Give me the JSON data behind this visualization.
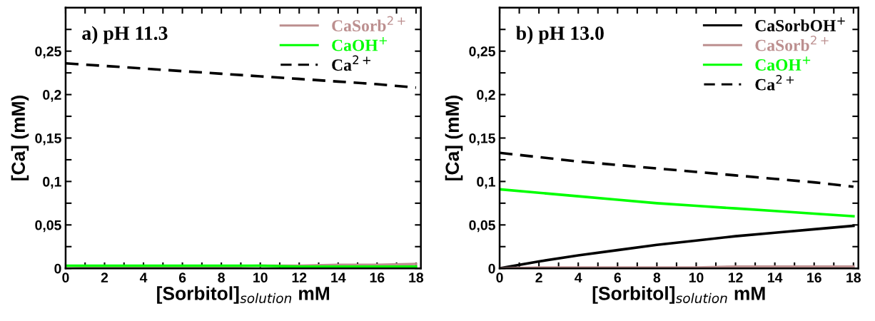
{
  "chart_data": [
    {
      "type": "line",
      "title": "a) pH 11.3",
      "xlabel": "[Sorbitol]$_{solution}$ mM",
      "ylabel": "[Ca] (mM)",
      "x": [
        0,
        2,
        4,
        6,
        8,
        10,
        12,
        14,
        16,
        18
      ],
      "series": [
        {
          "name": "CaSorb$^{2+}$",
          "color": "#bc8f8f",
          "line_style": "solid",
          "values": [
            0.0,
            0.001,
            0.001,
            0.002,
            0.002,
            0.003,
            0.003,
            0.004,
            0.004,
            0.005
          ]
        },
        {
          "name": "CaOH$^{+}$",
          "color": "#00ff00",
          "line_style": "solid",
          "values": [
            0.003,
            0.003,
            0.003,
            0.003,
            0.003,
            0.003,
            0.002,
            0.002,
            0.002,
            0.002
          ]
        },
        {
          "name": "Ca$^{2+}$",
          "color": "#000000",
          "line_style": "dashed",
          "values": [
            0.236,
            0.233,
            0.23,
            0.227,
            0.224,
            0.221,
            0.218,
            0.215,
            0.212,
            0.208
          ]
        }
      ],
      "xlim": [
        0,
        18.25
      ],
      "ylim": [
        0,
        0.3
      ],
      "xticks": [
        0,
        {
          "value": 1,
          "label": null
        },
        2,
        {
          "value": 3,
          "label": null
        },
        4,
        {
          "value": 5,
          "label": null
        },
        6,
        {
          "value": 7,
          "label": null
        },
        8,
        {
          "value": 9,
          "label": null
        },
        10,
        {
          "value": 11,
          "label": null
        },
        12,
        {
          "value": 13,
          "label": null
        },
        14,
        {
          "value": 15,
          "label": null
        },
        16,
        {
          "value": 17,
          "label": null
        },
        18
      ],
      "yticks": [
        0,
        {
          "value": 0.025,
          "label": null
        },
        {
          "value": 0.05,
          "label": "0,05"
        },
        {
          "value": 0.075,
          "label": null
        },
        {
          "value": 0.1,
          "label": "0,1"
        },
        {
          "value": 0.125,
          "label": null
        },
        {
          "value": 0.15,
          "label": "0,15"
        },
        {
          "value": 0.175,
          "label": null
        },
        {
          "value": 0.2,
          "label": "0,2"
        },
        {
          "value": 0.225,
          "label": null
        },
        {
          "value": 0.25,
          "label": "0,25"
        },
        {
          "value": 0.275,
          "label": null
        }
      ],
      "grid": false,
      "legend": "top right",
      "marker": "none"
    },
    {
      "type": "line",
      "title": "b) pH 13.0",
      "xlabel": "[Sorbitol]$_{solution}$ mM",
      "ylabel": "[Ca] (mM)",
      "x": [
        0,
        2,
        4,
        6,
        8,
        10,
        12,
        14,
        16,
        18
      ],
      "series": [
        {
          "name": "CaSorbOH$^{+}$",
          "color": "#000000",
          "line_style": "solid",
          "values": [
            0.0,
            0.008,
            0.015,
            0.021,
            0.027,
            0.032,
            0.037,
            0.041,
            0.045,
            0.049
          ]
        },
        {
          "name": "CaSorb$^{2+}$",
          "color": "#bc8f8f",
          "line_style": "solid",
          "values": [
            0.0,
            0.001,
            0.001,
            0.001,
            0.001,
            0.001,
            0.002,
            0.002,
            0.002,
            0.002
          ]
        },
        {
          "name": "CaOH$^{+}$",
          "color": "#00ff00",
          "line_style": "solid",
          "values": [
            0.091,
            0.087,
            0.083,
            0.079,
            0.075,
            0.072,
            0.069,
            0.066,
            0.063,
            0.06
          ]
        },
        {
          "name": "Ca$^{2+}$",
          "color": "#000000",
          "line_style": "dashed",
          "values": [
            0.133,
            0.128,
            0.123,
            0.119,
            0.115,
            0.111,
            0.107,
            0.103,
            0.099,
            0.094
          ]
        }
      ],
      "xlim": [
        0,
        18.25
      ],
      "ylim": [
        0,
        0.3
      ],
      "xticks": [
        0,
        {
          "value": 1,
          "label": null
        },
        2,
        {
          "value": 3,
          "label": null
        },
        4,
        {
          "value": 5,
          "label": null
        },
        6,
        {
          "value": 7,
          "label": null
        },
        8,
        {
          "value": 9,
          "label": null
        },
        10,
        {
          "value": 11,
          "label": null
        },
        12,
        {
          "value": 13,
          "label": null
        },
        14,
        {
          "value": 15,
          "label": null
        },
        16,
        {
          "value": 17,
          "label": null
        },
        18
      ],
      "yticks": [
        0,
        {
          "value": 0.025,
          "label": null
        },
        {
          "value": 0.05,
          "label": "0,05"
        },
        {
          "value": 0.075,
          "label": null
        },
        {
          "value": 0.1,
          "label": "0,1"
        },
        {
          "value": 0.125,
          "label": null
        },
        {
          "value": 0.15,
          "label": "0,15"
        },
        {
          "value": 0.175,
          "label": null
        },
        {
          "value": 0.2,
          "label": "0,2"
        },
        {
          "value": 0.225,
          "label": null
        },
        {
          "value": 0.25,
          "label": "0,25"
        },
        {
          "value": 0.275,
          "label": null
        }
      ],
      "grid": false,
      "legend": "top right",
      "marker": "none"
    }
  ]
}
